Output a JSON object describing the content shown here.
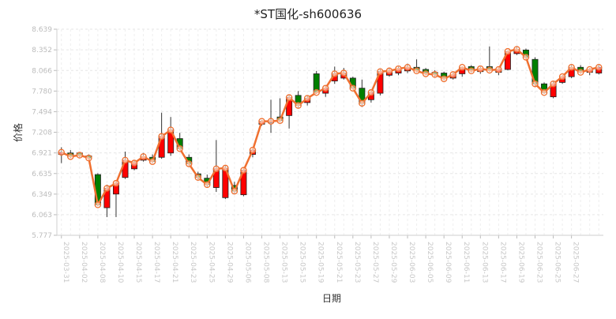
{
  "chart_data": {
    "type": "candlestick",
    "title": "*ST国化-sh600636",
    "xlabel": "日期",
    "ylabel": "价格",
    "ylim": [
      5.777,
      8.639
    ],
    "yticks": [
      "5.777",
      "6.063",
      "6.349",
      "6.635",
      "6.921",
      "7.208",
      "7.494",
      "7.780",
      "8.066",
      "8.352",
      "8.639"
    ],
    "xtick_labels": [
      "2025-03-31",
      "2025-04-02",
      "2025-04-08",
      "2025-04-10",
      "2025-04-15",
      "2025-04-17",
      "2025-04-21",
      "2025-04-23",
      "2025-04-25",
      "2025-04-29",
      "2025-05-06",
      "2025-05-08",
      "2025-05-13",
      "2025-05-15",
      "2025-05-19",
      "2025-05-21",
      "2025-05-23",
      "2025-05-27",
      "2025-05-29",
      "2025-06-03",
      "2025-06-05",
      "2025-06-09",
      "2025-06-11",
      "2025-06-13",
      "2025-06-17",
      "2025-06-19",
      "2025-06-23",
      "2025-06-25",
      "2025-06-27"
    ],
    "grid": true,
    "colors": {
      "up": "#ff0000",
      "down": "#008000",
      "line": "#f07030",
      "marker_fill": "#ffffff"
    },
    "candles": [
      {
        "o": 6.9,
        "c": 6.93,
        "h": 7.0,
        "l": 6.78
      },
      {
        "o": 6.92,
        "c": 6.87,
        "h": 6.96,
        "l": 6.85
      },
      {
        "o": 6.92,
        "c": 6.89,
        "h": 6.93,
        "l": 6.86
      },
      {
        "o": 6.88,
        "c": 6.85,
        "h": 6.9,
        "l": 6.84
      },
      {
        "o": 6.62,
        "c": 6.2,
        "h": 6.64,
        "l": 6.18
      },
      {
        "o": 6.16,
        "c": 6.43,
        "h": 6.48,
        "l": 6.03
      },
      {
        "o": 6.35,
        "c": 6.5,
        "h": 6.54,
        "l": 6.03
      },
      {
        "o": 6.58,
        "c": 6.82,
        "h": 6.94,
        "l": 6.56
      },
      {
        "o": 6.7,
        "c": 6.78,
        "h": 6.82,
        "l": 6.68
      },
      {
        "o": 6.82,
        "c": 6.87,
        "h": 6.92,
        "l": 6.8
      },
      {
        "o": 6.86,
        "c": 6.8,
        "h": 6.9,
        "l": 6.78
      },
      {
        "o": 6.86,
        "c": 7.15,
        "h": 7.48,
        "l": 6.84
      },
      {
        "o": 6.92,
        "c": 7.24,
        "h": 7.42,
        "l": 6.88
      },
      {
        "o": 7.12,
        "c": 6.98,
        "h": 7.2,
        "l": 6.96
      },
      {
        "o": 6.86,
        "c": 6.77,
        "h": 6.9,
        "l": 6.74
      },
      {
        "o": 6.63,
        "c": 6.58,
        "h": 6.66,
        "l": 6.55
      },
      {
        "o": 6.57,
        "c": 6.48,
        "h": 6.62,
        "l": 6.45
      },
      {
        "o": 6.44,
        "c": 6.7,
        "h": 7.1,
        "l": 6.38
      },
      {
        "o": 6.3,
        "c": 6.71,
        "h": 6.74,
        "l": 6.28
      },
      {
        "o": 6.47,
        "c": 6.39,
        "h": 6.52,
        "l": 6.36
      },
      {
        "o": 6.34,
        "c": 6.68,
        "h": 6.72,
        "l": 6.32
      },
      {
        "o": 6.9,
        "c": 6.96,
        "h": 7.0,
        "l": 6.86
      },
      {
        "o": 7.32,
        "c": 7.36,
        "h": 7.38,
        "l": 7.3
      },
      {
        "o": 7.34,
        "c": 7.36,
        "h": 7.66,
        "l": 7.2
      },
      {
        "o": 7.42,
        "c": 7.37,
        "h": 7.68,
        "l": 7.35
      },
      {
        "o": 7.44,
        "c": 7.69,
        "h": 7.72,
        "l": 7.26
      },
      {
        "o": 7.72,
        "c": 7.58,
        "h": 7.78,
        "l": 7.55
      },
      {
        "o": 7.62,
        "c": 7.68,
        "h": 7.72,
        "l": 7.58
      },
      {
        "o": 8.02,
        "c": 7.76,
        "h": 8.06,
        "l": 7.74
      },
      {
        "o": 7.75,
        "c": 7.82,
        "h": 7.86,
        "l": 7.7
      },
      {
        "o": 7.92,
        "c": 8.02,
        "h": 8.12,
        "l": 7.88
      },
      {
        "o": 7.96,
        "c": 8.03,
        "h": 8.1,
        "l": 7.94
      },
      {
        "o": 7.96,
        "c": 7.82,
        "h": 7.98,
        "l": 7.8
      },
      {
        "o": 7.82,
        "c": 7.61,
        "h": 7.94,
        "l": 7.56
      },
      {
        "o": 7.66,
        "c": 7.76,
        "h": 7.8,
        "l": 7.62
      },
      {
        "o": 7.75,
        "c": 8.05,
        "h": 8.08,
        "l": 7.72
      },
      {
        "o": 8.0,
        "c": 8.06,
        "h": 8.1,
        "l": 7.98
      },
      {
        "o": 8.03,
        "c": 8.09,
        "h": 8.12,
        "l": 8.0
      },
      {
        "o": 8.06,
        "c": 8.11,
        "h": 8.16,
        "l": 8.03
      },
      {
        "o": 8.11,
        "c": 8.06,
        "h": 8.22,
        "l": 8.04
      },
      {
        "o": 8.08,
        "c": 8.02,
        "h": 8.1,
        "l": 8.0
      },
      {
        "o": 8.04,
        "c": 8.01,
        "h": 8.07,
        "l": 7.98
      },
      {
        "o": 8.03,
        "c": 7.95,
        "h": 8.05,
        "l": 7.93
      },
      {
        "o": 7.96,
        "c": 8.01,
        "h": 8.04,
        "l": 7.94
      },
      {
        "o": 8.02,
        "c": 8.11,
        "h": 8.12,
        "l": 7.98
      },
      {
        "o": 8.12,
        "c": 8.06,
        "h": 8.14,
        "l": 8.04
      },
      {
        "o": 8.05,
        "c": 8.09,
        "h": 8.12,
        "l": 8.02
      },
      {
        "o": 8.12,
        "c": 8.07,
        "h": 8.4,
        "l": 8.05
      },
      {
        "o": 8.04,
        "c": 8.08,
        "h": 8.12,
        "l": 8.0
      },
      {
        "o": 8.08,
        "c": 8.33,
        "h": 8.34,
        "l": 8.07
      },
      {
        "o": 8.3,
        "c": 8.36,
        "h": 8.4,
        "l": 8.28
      },
      {
        "o": 8.35,
        "c": 8.25,
        "h": 8.37,
        "l": 8.22
      },
      {
        "o": 8.22,
        "c": 7.88,
        "h": 8.25,
        "l": 7.85
      },
      {
        "o": 7.88,
        "c": 7.76,
        "h": 7.9,
        "l": 7.74
      },
      {
        "o": 7.7,
        "c": 7.88,
        "h": 7.92,
        "l": 7.68
      },
      {
        "o": 7.9,
        "c": 7.98,
        "h": 8.0,
        "l": 7.88
      },
      {
        "o": 7.98,
        "c": 8.11,
        "h": 8.14,
        "l": 7.96
      },
      {
        "o": 8.11,
        "c": 8.04,
        "h": 8.14,
        "l": 8.02
      },
      {
        "o": 8.04,
        "c": 8.08,
        "h": 8.1,
        "l": 8.0
      },
      {
        "o": 8.03,
        "c": 8.11,
        "h": 8.14,
        "l": 8.01
      }
    ]
  }
}
